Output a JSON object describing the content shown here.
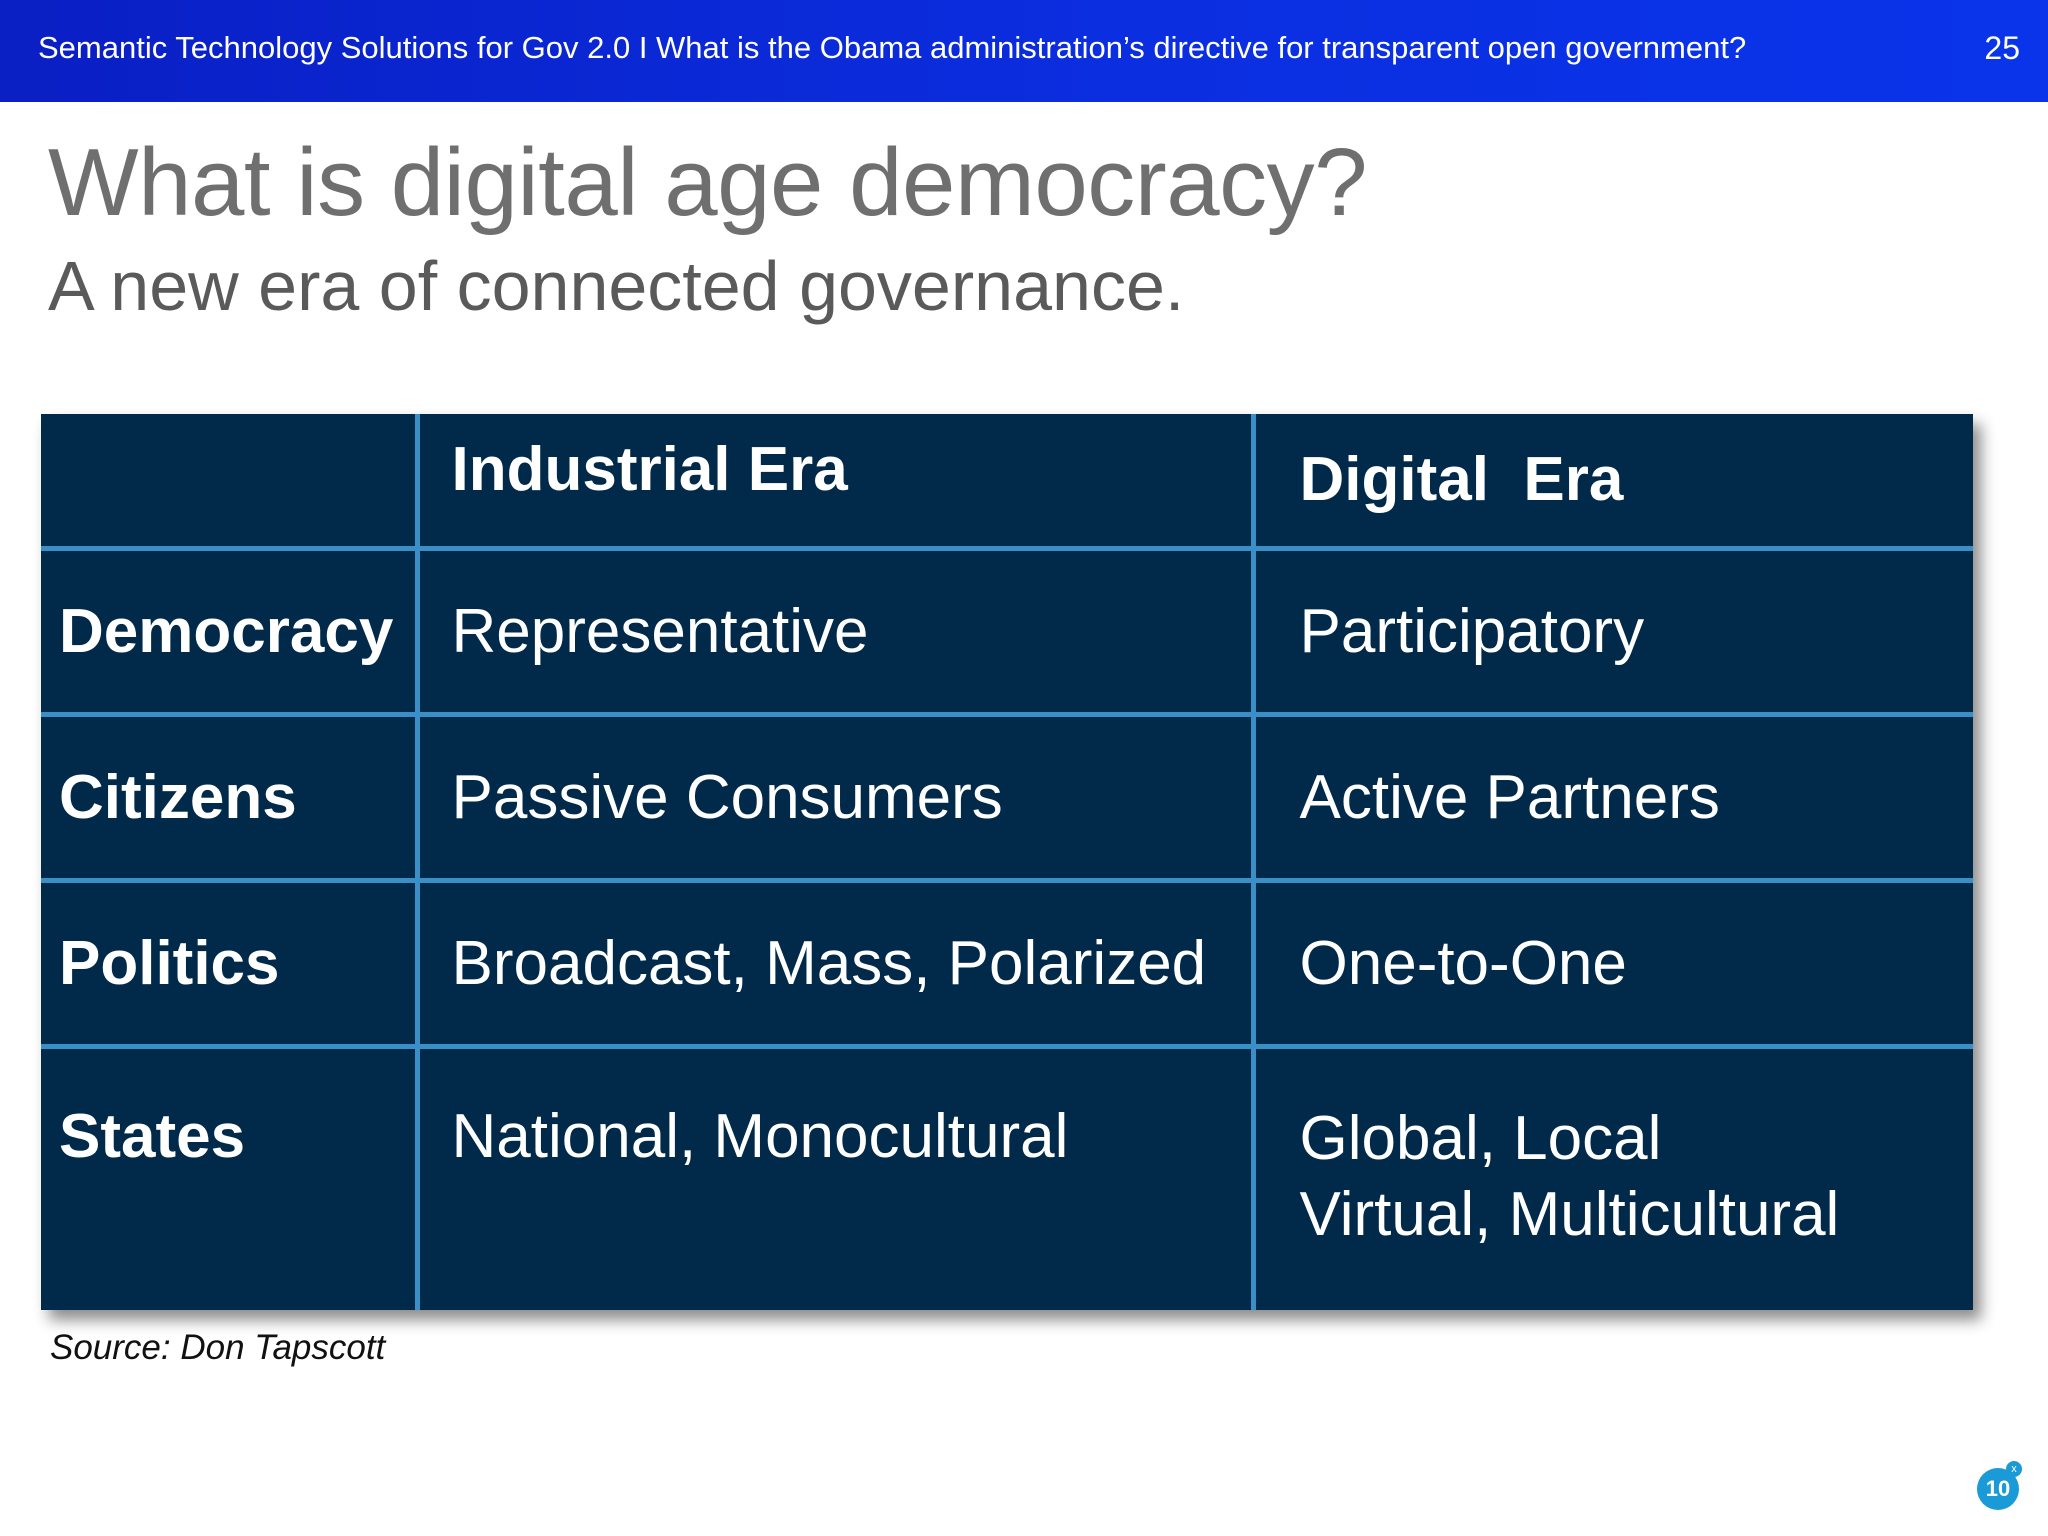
{
  "header": {
    "title": "Semantic Technology Solutions for Gov 2.0 I What is the Obama administration’s directive for transparent open government?",
    "page_number": "25"
  },
  "slide": {
    "title": "What is digital age democracy?",
    "subtitle": "A new era of connected governance."
  },
  "table": {
    "columns": [
      "",
      "Industrial Era",
      "Digital  Era"
    ],
    "rows": [
      {
        "label": "Democracy",
        "industrial": "Representative",
        "digital": "Participatory"
      },
      {
        "label": "Citizens",
        "industrial": "Passive Consumers",
        "digital": "Active Partners"
      },
      {
        "label": "Politics",
        "industrial": "Broadcast, Mass, Polarized",
        "digital": "One-to-One"
      },
      {
        "label": "States",
        "industrial": "National, Monocultural",
        "digital_lines": [
          "Global, Local",
          "Virtual, Multicultural"
        ]
      }
    ]
  },
  "source": "Source: Don Tapscott",
  "badge": {
    "count": "10",
    "close_glyph": "x"
  },
  "colors": {
    "header_bar": "#0b2ee0",
    "table_bg": "#012a4a",
    "table_grid": "#3a8fc6",
    "accent_orange": "#f5a945",
    "badge": "#1a9ad6"
  }
}
